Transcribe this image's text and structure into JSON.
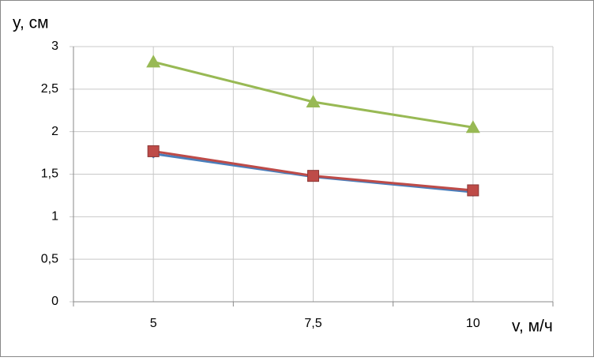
{
  "chart_data": {
    "type": "line",
    "y_label": "y, см",
    "x_label": "v, м/ч",
    "categories": [
      "5",
      "7,5",
      "10"
    ],
    "series": [
      {
        "color": "#4a7ebb",
        "marker": "diamond",
        "values": [
          1.74,
          1.47,
          1.29
        ]
      },
      {
        "color": "#be4b48",
        "marker": "square",
        "values": [
          1.77,
          1.48,
          1.31
        ]
      },
      {
        "color": "#98b954",
        "marker": "triangle",
        "values": [
          2.82,
          2.35,
          2.05
        ]
      }
    ],
    "ylim": [
      0,
      3
    ],
    "yticks": [
      0,
      {
        "value": 0.5,
        "label": "0,5"
      },
      1,
      {
        "value": 1.5,
        "label": "1,5"
      },
      2,
      {
        "value": 2.5,
        "label": "2,5"
      },
      3
    ],
    "grid": true
  }
}
